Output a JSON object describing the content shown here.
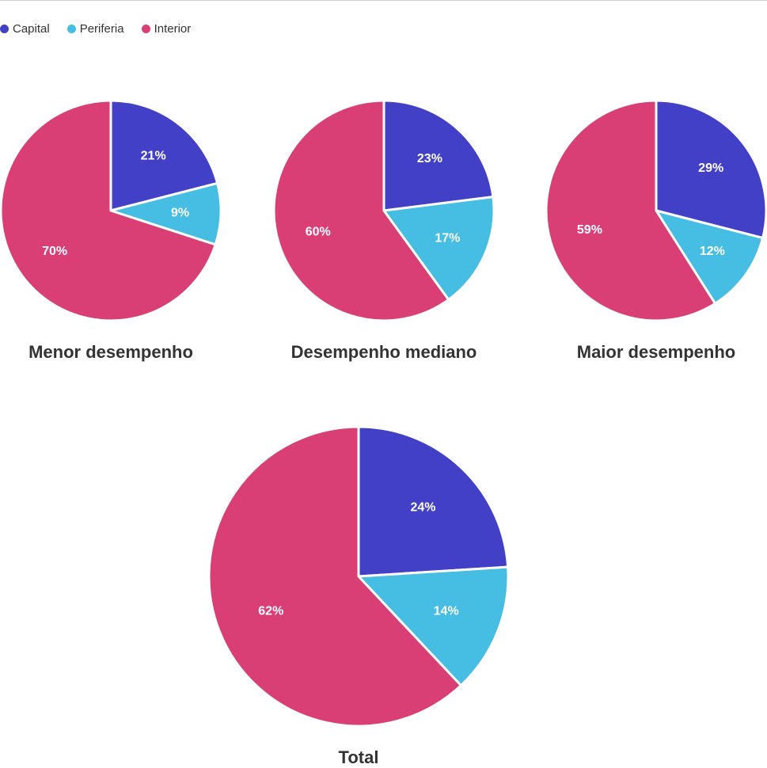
{
  "legend": {
    "items": [
      {
        "label": "Capital",
        "color": "#4340c8"
      },
      {
        "label": "Periferia",
        "color": "#46bde2"
      },
      {
        "label": "Interior",
        "color": "#d93f74"
      }
    ]
  },
  "chart_data": [
    {
      "type": "pie",
      "title": "Menor desempenho",
      "categories": [
        "Capital",
        "Periferia",
        "Interior"
      ],
      "values": [
        21,
        9,
        70
      ],
      "labels": [
        "21%",
        "9%",
        "70%"
      ]
    },
    {
      "type": "pie",
      "title": "Desempenho mediano",
      "categories": [
        "Capital",
        "Periferia",
        "Interior"
      ],
      "values": [
        23,
        17,
        60
      ],
      "labels": [
        "23%",
        "17%",
        "60%"
      ]
    },
    {
      "type": "pie",
      "title": "Maior desempenho",
      "categories": [
        "Capital",
        "Periferia",
        "Interior"
      ],
      "values": [
        29,
        12,
        59
      ],
      "labels": [
        "29%",
        "12%",
        "59%"
      ]
    },
    {
      "type": "pie",
      "title": "Total",
      "categories": [
        "Capital",
        "Periferia",
        "Interior"
      ],
      "values": [
        24,
        14,
        62
      ],
      "labels": [
        "24%",
        "14%",
        "62%"
      ]
    }
  ]
}
